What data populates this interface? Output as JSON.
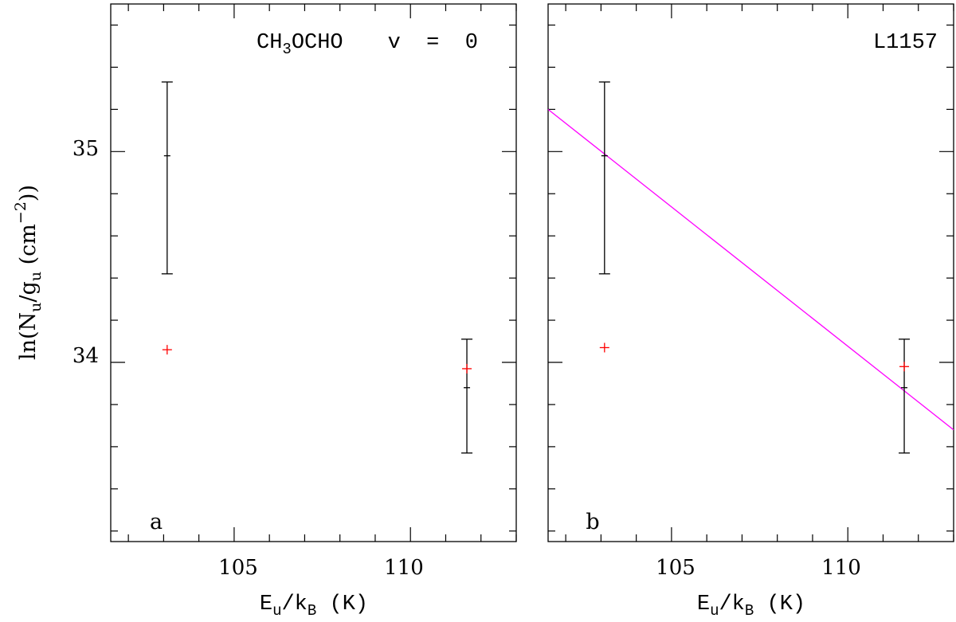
{
  "chart_data": [
    {
      "panel": "a",
      "type": "scatter",
      "title_molecule_parts": [
        "CH",
        "3",
        "OCHO"
      ],
      "title_state": "v = 0",
      "panel_label": "a",
      "xlabel": "Eu/kB (K)",
      "ylabel": "ln(Nu/gu (cm^-2))",
      "xlim": [
        101.5,
        113.0
      ],
      "ylim": [
        33.15,
        35.7
      ],
      "x_ticks": [
        105,
        110
      ],
      "y_ticks": [
        34,
        35
      ],
      "observed": [
        {
          "x": 103.1,
          "y": 34.98,
          "y_low": 34.42,
          "y_high": 35.33
        },
        {
          "x": 111.6,
          "y": 33.88,
          "y_low": 33.57,
          "y_high": 34.11
        }
      ],
      "model": [
        {
          "x": 103.1,
          "y": 34.06
        },
        {
          "x": 111.6,
          "y": 33.97
        }
      ]
    },
    {
      "panel": "b",
      "type": "scatter",
      "title": "L1157",
      "panel_label": "b",
      "xlabel": "Eu/kB (K)",
      "xlim": [
        101.5,
        113.0
      ],
      "ylim": [
        33.15,
        35.7
      ],
      "x_ticks": [
        105,
        110
      ],
      "y_ticks": [
        34,
        35
      ],
      "observed": [
        {
          "x": 103.1,
          "y": 34.98,
          "y_low": 34.42,
          "y_high": 35.33
        },
        {
          "x": 111.6,
          "y": 33.88,
          "y_low": 33.57,
          "y_high": 34.11
        }
      ],
      "model": [
        {
          "x": 103.1,
          "y": 34.07
        },
        {
          "x": 111.6,
          "y": 33.98
        }
      ],
      "fit_line": {
        "x": [
          101.5,
          113.0
        ],
        "y": [
          35.2,
          33.68
        ]
      }
    }
  ],
  "labels": {
    "tick_105": "105",
    "tick_110": "110",
    "tick_34": "34",
    "tick_35": "35",
    "title_state": "v  =  0",
    "title_b": "L1157",
    "panel_a": "a",
    "panel_b": "b"
  }
}
